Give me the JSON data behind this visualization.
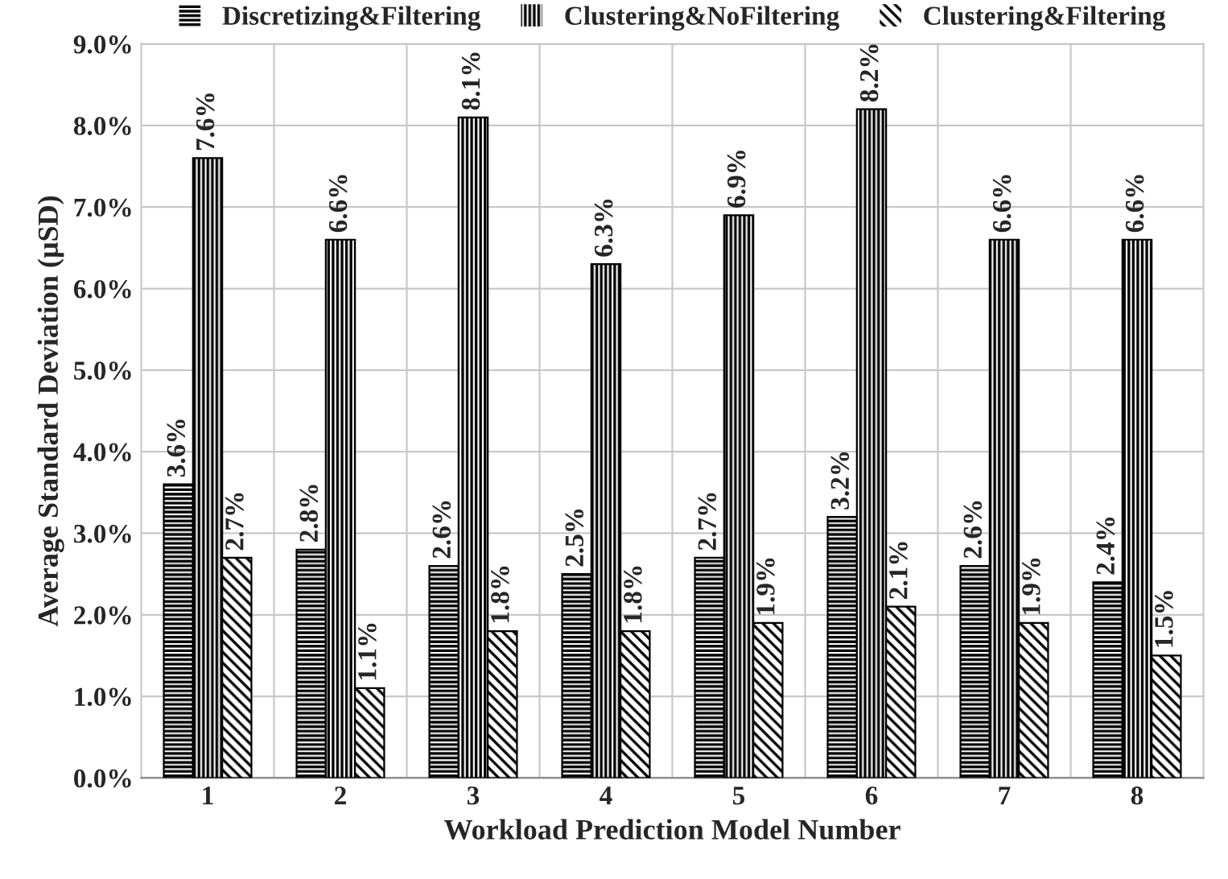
{
  "chart_data": {
    "type": "bar",
    "xlabel": "Workload Prediction Model Number",
    "ylabel": "Average Standard Deviation (μSD)",
    "categories": [
      "1",
      "2",
      "3",
      "4",
      "5",
      "6",
      "7",
      "8"
    ],
    "series": [
      {
        "name": "Discretizing&Filtering",
        "color": "#000000",
        "values": [
          3.6,
          2.8,
          2.6,
          2.5,
          2.7,
          3.2,
          2.6,
          2.4
        ],
        "value_labels": [
          "3.6%",
          "2.8%",
          "2.6%",
          "2.5%",
          "2.7%",
          "3.2%",
          "2.6%",
          "2.4%"
        ]
      },
      {
        "name": "Clustering&NoFiltering",
        "color": "#000000",
        "values": [
          7.6,
          6.6,
          8.1,
          6.3,
          6.9,
          8.2,
          6.6,
          6.6
        ],
        "value_labels": [
          "7.6%",
          "6.6%",
          "8.1%",
          "6.3%",
          "6.9%",
          "8.2%",
          "6.6%",
          "6.6%"
        ]
      },
      {
        "name": "Clustering&Filtering",
        "color": "#000000",
        "values": [
          2.7,
          1.1,
          1.8,
          1.8,
          1.9,
          2.1,
          1.9,
          1.5
        ],
        "value_labels": [
          "2.7%",
          "1.1%",
          "1.8%",
          "1.8%",
          "1.9%",
          "2.1%",
          "1.9%",
          "1.5%"
        ]
      }
    ],
    "ylim": [
      0,
      9
    ],
    "yticks": [
      {
        "value": 0,
        "label": "0.0%"
      },
      {
        "value": 1,
        "label": "1.0%"
      },
      {
        "value": 2,
        "label": "2.0%"
      },
      {
        "value": 3,
        "label": "3.0%"
      },
      {
        "value": 4,
        "label": "4.0%"
      },
      {
        "value": 5,
        "label": "5.0%"
      },
      {
        "value": 6,
        "label": "6.0%"
      },
      {
        "value": 7,
        "label": "7.0%"
      },
      {
        "value": 8,
        "label": "8.0%"
      },
      {
        "value": 9,
        "label": "9.0%"
      }
    ],
    "grid": true,
    "legend": "top"
  }
}
